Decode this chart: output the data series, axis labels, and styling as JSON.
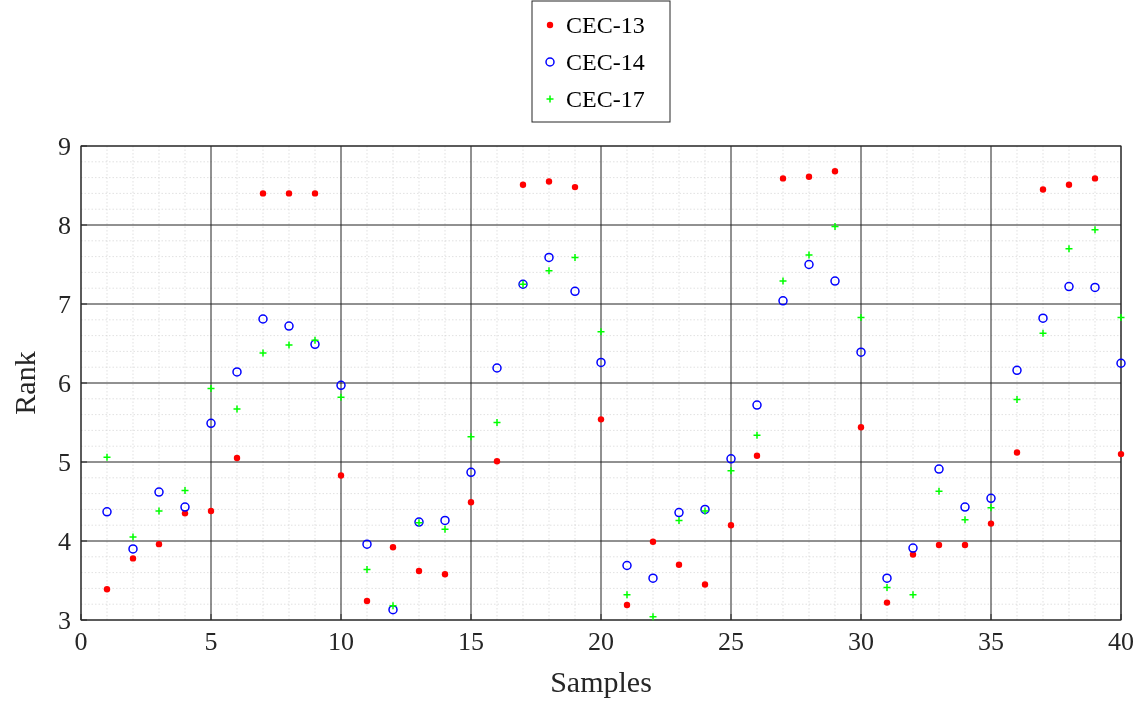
{
  "chart_data": {
    "type": "scatter",
    "xlabel": "Samples",
    "ylabel": "Rank",
    "x": [
      1,
      2,
      3,
      4,
      5,
      6,
      7,
      8,
      9,
      10,
      11,
      12,
      13,
      14,
      15,
      16,
      17,
      18,
      19,
      20,
      21,
      22,
      23,
      24,
      25,
      26,
      27,
      28,
      29,
      30,
      31,
      32,
      33,
      34,
      35,
      36,
      37,
      38,
      39,
      40
    ],
    "xlim": [
      0,
      40
    ],
    "xticks": [
      0,
      5,
      10,
      15,
      20,
      25,
      30,
      35,
      40
    ],
    "ylim": [
      3,
      9
    ],
    "yticks": [
      3,
      4,
      5,
      6,
      7,
      8,
      9
    ],
    "grid": true,
    "legend": "top",
    "series": [
      {
        "name": "CEC-13",
        "color": "#ff0000",
        "marker": "point",
        "values": [
          3.39,
          3.78,
          3.96,
          4.35,
          4.38,
          5.05,
          8.4,
          8.4,
          8.4,
          4.83,
          3.24,
          3.92,
          3.62,
          3.58,
          4.49,
          5.01,
          8.51,
          8.55,
          8.48,
          5.54,
          3.19,
          3.99,
          3.7,
          3.45,
          4.2,
          5.08,
          8.59,
          8.61,
          8.68,
          5.44,
          3.22,
          3.83,
          3.95,
          3.95,
          4.22,
          5.12,
          8.45,
          8.51,
          8.59,
          5.1
        ]
      },
      {
        "name": "CEC-14",
        "color": "#0000ff",
        "marker": "circle",
        "values": [
          4.37,
          3.9,
          4.62,
          4.43,
          5.49,
          6.14,
          6.81,
          6.72,
          6.49,
          5.97,
          3.96,
          3.13,
          4.24,
          4.26,
          4.87,
          6.19,
          7.25,
          7.59,
          7.16,
          6.26,
          3.69,
          3.53,
          4.36,
          4.4,
          5.04,
          5.72,
          7.04,
          7.5,
          7.29,
          6.39,
          3.53,
          3.91,
          4.91,
          4.43,
          4.54,
          6.16,
          6.82,
          7.22,
          7.21,
          6.25
        ]
      },
      {
        "name": "CEC-17",
        "color": "#00ff00",
        "marker": "cross",
        "values": [
          5.06,
          4.05,
          4.38,
          4.64,
          5.93,
          5.67,
          6.38,
          6.48,
          6.54,
          5.82,
          3.64,
          3.18,
          4.23,
          4.15,
          5.32,
          5.5,
          7.25,
          7.42,
          7.59,
          6.65,
          3.32,
          3.04,
          4.26,
          4.38,
          4.89,
          5.34,
          7.29,
          7.62,
          7.98,
          6.83,
          3.41,
          3.32,
          4.63,
          4.27,
          4.42,
          5.79,
          6.63,
          7.7,
          7.94,
          6.83
        ]
      }
    ]
  }
}
